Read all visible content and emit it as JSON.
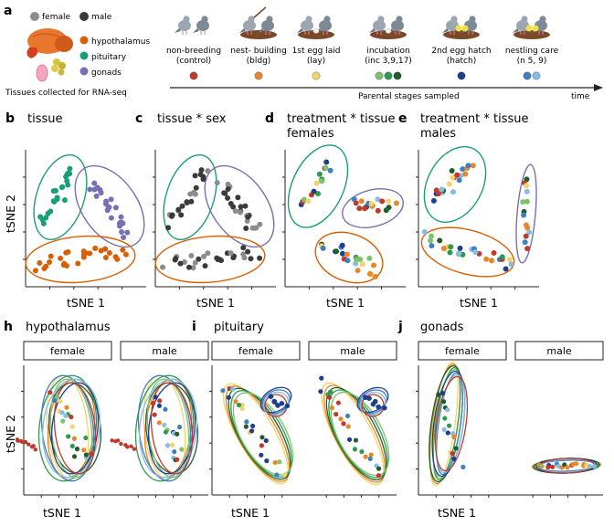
{
  "panel_a": {
    "letter": "a",
    "legend_sex": [
      "female",
      "male"
    ],
    "tissues": [
      {
        "label": "hypothalamus",
        "color": "#d95f02"
      },
      {
        "label": "pituitary",
        "color": "#1b9e77"
      },
      {
        "label": "gonads",
        "color": "#7570b3"
      }
    ],
    "tissue_caption": "Tissues collected for RNA-seq",
    "stages": [
      {
        "line1": "non-breeding",
        "line2": "(control)",
        "colors": [
          "#c0392b"
        ]
      },
      {
        "line1": "nest-  building",
        "line2": "(bldg)",
        "colors": [
          "#e8862a"
        ]
      },
      {
        "line1": "1st egg laid",
        "line2": "(lay)",
        "colors": [
          "#f5d36b"
        ]
      },
      {
        "line1": "incubation",
        "line2": "(inc 3,9,17)",
        "colors": [
          "#7cc36b",
          "#2e9a4e",
          "#1f5e2e"
        ]
      },
      {
        "line1": "2nd egg hatch",
        "line2": "(hatch)",
        "colors": [
          "#1f3f8a"
        ]
      },
      {
        "line1": "nestling care",
        "line2": "(n 5, 9)",
        "colors": [
          "#3f7fc0",
          "#86bde0"
        ]
      }
    ],
    "axis_caption": "Parental stages sampled",
    "axis_end": "time"
  },
  "row2": {
    "panels": [
      {
        "letter": "b",
        "title1": "tissue",
        "title2": ""
      },
      {
        "letter": "c",
        "title1": "tissue * sex",
        "title2": ""
      },
      {
        "letter": "d",
        "title1": "treatment * tissue",
        "title2": "females"
      },
      {
        "letter": "e",
        "title1": "treatment * tissue",
        "title2": "males"
      }
    ],
    "xlabel": "tSNE 1",
    "ylabel": "tSNE 2"
  },
  "row3": {
    "panels": [
      {
        "letter": "h",
        "title": "hypothalamus"
      },
      {
        "letter": "i",
        "title": "pituitary"
      },
      {
        "letter": "j",
        "title": "gonads"
      }
    ],
    "facets": [
      "female",
      "male"
    ],
    "xlabel": "tSNE 1",
    "ylabel": "tSNE 2"
  },
  "colors": {
    "hypothalamus": "#d95f02",
    "pituitary": "#1b9e77",
    "gonads": "#7570b3",
    "female_dot": "#8c8c8c",
    "male_dot": "#3a3a3a"
  }
}
